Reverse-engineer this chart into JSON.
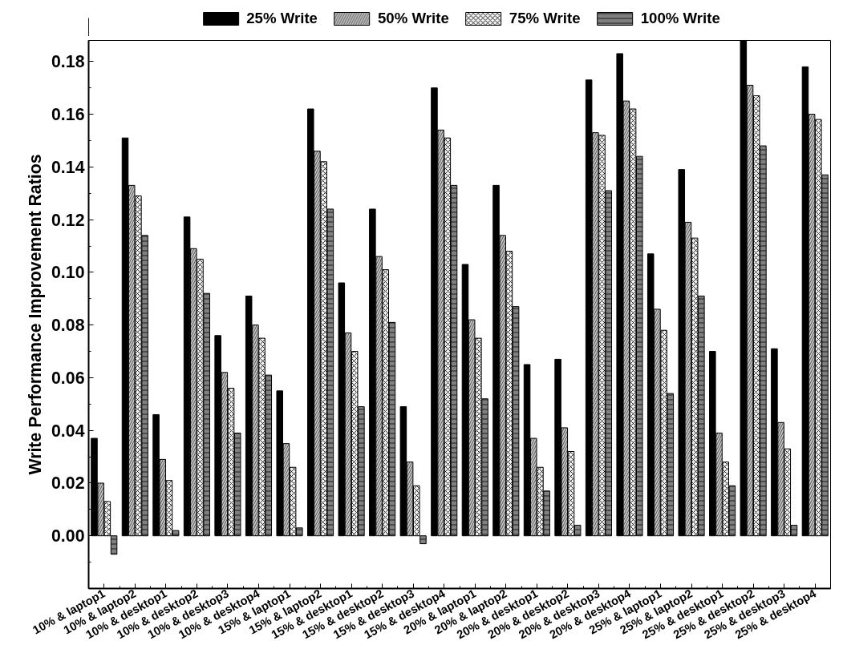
{
  "chart_data": {
    "type": "bar",
    "ylabel": "Write Performance Improvement Ratios",
    "categories": [
      "10% & laptop1",
      "10% & laptop2",
      "10% & desktop1",
      "10% & desktop2",
      "10% & desktop3",
      "10% & desktop4",
      "15% & laptop1",
      "15% & laptop2",
      "15% & desktop1",
      "15% & desktop2",
      "15% & desktop3",
      "15% & desktop4",
      "20% & laptop1",
      "20% & laptop2",
      "20% & desktop1",
      "20% & desktop2",
      "20% & desktop3",
      "20% & desktop4",
      "25% & laptop1",
      "25% & laptop2",
      "25% & desktop1",
      "25% & desktop2",
      "25% & desktop3",
      "25% & desktop4"
    ],
    "series": [
      {
        "name": "25% Write",
        "color": "#000000",
        "values": [
          0.037,
          0.151,
          0.046,
          0.121,
          0.076,
          0.091,
          0.055,
          0.162,
          0.096,
          0.124,
          0.049,
          0.17,
          0.103,
          0.133,
          0.065,
          0.067,
          0.173,
          0.183,
          0.107,
          0.139,
          0.07,
          0.188,
          0.071,
          0.178
        ]
      },
      {
        "name": "50% Write",
        "color": "#c0c0c0",
        "values": [
          0.02,
          0.133,
          0.029,
          0.109,
          0.062,
          0.08,
          0.035,
          0.146,
          0.077,
          0.106,
          0.028,
          0.154,
          0.082,
          0.114,
          0.037,
          0.041,
          0.153,
          0.165,
          0.086,
          0.119,
          0.039,
          0.171,
          0.043,
          0.16
        ]
      },
      {
        "name": "75% Write",
        "color": "#f0f0f0",
        "values": [
          0.013,
          0.129,
          0.021,
          0.105,
          0.056,
          0.075,
          0.026,
          0.142,
          0.07,
          0.101,
          0.019,
          0.151,
          0.075,
          0.108,
          0.026,
          0.032,
          0.152,
          0.162,
          0.078,
          0.113,
          0.028,
          0.167,
          0.033,
          0.158
        ]
      },
      {
        "name": "100% Write",
        "color": "#808080",
        "values": [
          -0.007,
          0.114,
          0.002,
          0.092,
          0.039,
          0.061,
          0.003,
          0.124,
          0.049,
          0.081,
          -0.003,
          0.133,
          0.052,
          0.087,
          0.017,
          0.004,
          0.131,
          0.144,
          0.054,
          0.091,
          0.019,
          0.148,
          0.004,
          0.137
        ]
      }
    ],
    "ylim": [
      -0.02,
      0.188
    ],
    "yticks": [
      {
        "value": 0,
        "label": "0.00"
      },
      {
        "value": 0.02,
        "label": "0.02"
      },
      {
        "value": 0.04,
        "label": "0.04"
      },
      {
        "value": 0.06,
        "label": "0.06"
      },
      {
        "value": 0.08,
        "label": "0.08"
      },
      {
        "value": 0.1,
        "label": "0.10"
      },
      {
        "value": 0.12,
        "label": "0.12"
      },
      {
        "value": 0.14,
        "label": "0.14"
      },
      {
        "value": 0.16,
        "label": "0.16"
      },
      {
        "value": 0.18,
        "label": "0.18"
      }
    ],
    "grid": false,
    "legend": "top"
  }
}
